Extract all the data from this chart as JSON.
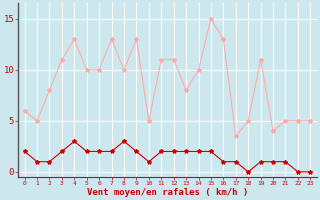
{
  "x": [
    0,
    1,
    2,
    3,
    4,
    5,
    6,
    7,
    8,
    9,
    10,
    11,
    12,
    13,
    14,
    15,
    16,
    17,
    18,
    19,
    20,
    21,
    22,
    23
  ],
  "wind_avg": [
    2,
    1,
    1,
    2,
    3,
    2,
    2,
    2,
    3,
    2,
    1,
    2,
    2,
    2,
    2,
    2,
    1,
    1,
    0,
    1,
    1,
    1,
    0,
    0
  ],
  "wind_gust": [
    6,
    5,
    8,
    11,
    13,
    10,
    10,
    13,
    10,
    13,
    5,
    11,
    11,
    8,
    10,
    15,
    13,
    3.5,
    5,
    11,
    4,
    5,
    5,
    5
  ],
  "avg_color": "#cc0000",
  "gust_color": "#ffaaaa",
  "bg_color": "#cce8ee",
  "grid_color": "#ffffff",
  "xlabel": "Vent moyen/en rafales ( km/h )",
  "xlabel_color": "#cc0000",
  "yticks": [
    0,
    5,
    10,
    15
  ],
  "ylim": [
    -0.5,
    16.5
  ],
  "xlim": [
    -0.5,
    23.5
  ]
}
